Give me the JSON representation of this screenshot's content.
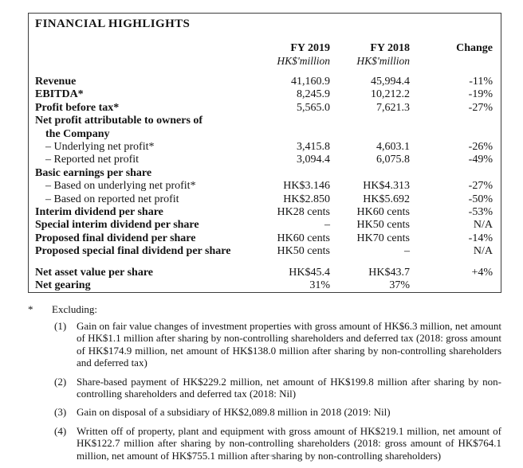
{
  "table": {
    "title": "FINANCIAL HIGHLIGHTS",
    "columns": {
      "fy2019": {
        "label": "FY 2019",
        "unit": "HK$'million"
      },
      "fy2018": {
        "label": "FY 2018",
        "unit": "HK$'million"
      },
      "change": {
        "label": "Change",
        "unit": ""
      }
    },
    "rows": [
      {
        "label": "Revenue",
        "fy2019": "41,160.9",
        "fy2018": "45,994.4",
        "change": "-11%",
        "bold": true,
        "indent": 0
      },
      {
        "label": "EBITDA*",
        "fy2019": "8,245.9",
        "fy2018": "10,212.2",
        "change": "-19%",
        "bold": true,
        "indent": 0
      },
      {
        "label": "Profit before tax*",
        "fy2019": "5,565.0",
        "fy2018": "7,621.3",
        "change": "-27%",
        "bold": true,
        "indent": 0
      },
      {
        "label": "Net profit attributable to owners of",
        "fy2019": "",
        "fy2018": "",
        "change": "",
        "bold": true,
        "indent": 0
      },
      {
        "label": "the Company",
        "fy2019": "",
        "fy2018": "",
        "change": "",
        "bold": true,
        "indent": 1
      },
      {
        "label": "– Underlying net profit*",
        "fy2019": "3,415.8",
        "fy2018": "4,603.1",
        "change": "-26%",
        "bold": false,
        "indent": 1
      },
      {
        "label": "– Reported net profit",
        "fy2019": "3,094.4",
        "fy2018": "6,075.8",
        "change": "-49%",
        "bold": false,
        "indent": 1
      },
      {
        "label": "Basic earnings per share",
        "fy2019": "",
        "fy2018": "",
        "change": "",
        "bold": true,
        "indent": 0
      },
      {
        "label": "– Based on underlying net profit*",
        "fy2019": "HK$3.146",
        "fy2018": "HK$4.313",
        "change": "-27%",
        "bold": false,
        "indent": 1
      },
      {
        "label": "– Based on reported net profit",
        "fy2019": "HK$2.850",
        "fy2018": "HK$5.692",
        "change": "-50%",
        "bold": false,
        "indent": 1
      },
      {
        "label": "Interim dividend per share",
        "fy2019": "HK28 cents",
        "fy2018": "HK60 cents",
        "change": "-53%",
        "bold": true,
        "indent": 0
      },
      {
        "label": "Special interim dividend per share",
        "fy2019": "–",
        "fy2018": "HK50 cents",
        "change": "N/A",
        "bold": true,
        "indent": 0
      },
      {
        "label": "Proposed final dividend per share",
        "fy2019": "HK60 cents",
        "fy2018": "HK70 cents",
        "change": "-14%",
        "bold": true,
        "indent": 0
      },
      {
        "label": "Proposed special final dividend per share",
        "fy2019": "HK50 cents",
        "fy2018": "–",
        "change": "N/A",
        "bold": true,
        "indent": 0
      },
      {
        "label": "Net asset value per share",
        "fy2019": "HK$45.4",
        "fy2018": "HK$43.7",
        "change": "+4%",
        "bold": true,
        "indent": 0,
        "spacer_before": true
      },
      {
        "label": "Net gearing",
        "fy2019": "31%",
        "fy2018": "37%",
        "change": "",
        "bold": true,
        "indent": 0
      }
    ]
  },
  "footnotes": {
    "marker": "*",
    "heading": "Excluding:",
    "items": [
      {
        "num": "(1)",
        "text": "Gain on fair value changes of investment properties with gross amount of HK$6.3 million, net amount of HK$1.1 million after sharing by non-controlling shareholders and deferred tax (2018: gross amount of HK$174.9 million, net amount of HK$138.0 million after sharing by non-controlling shareholders and deferred tax)"
      },
      {
        "num": "(2)",
        "text": "Share-based payment of HK$229.2 million, net amount of HK$199.8 million after sharing by non-controlling shareholders and deferred tax (2018: Nil)"
      },
      {
        "num": "(3)",
        "text": "Gain on disposal of a subsidiary of HK$2,089.8 million in 2018 (2019: Nil)"
      },
      {
        "num": "(4)",
        "text": "Written off of property, plant and equipment with gross amount of HK$219.1 million, net amount of HK$122.7 million after sharing by non-controlling shareholders (2018: gross amount of HK$764.1 million, net amount of HK$755.1 million after sharing by non-controlling shareholders)"
      }
    ]
  }
}
